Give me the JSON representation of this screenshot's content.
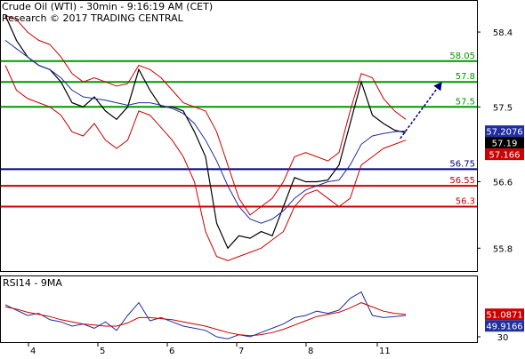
{
  "header": {
    "title_line": "Crude Oil (WTI) - 30min - 9:16:19 AM (CET)",
    "source_line": "Research © 2017 TRADING CENTRAL"
  },
  "rsi": {
    "label": "RSI14 - 9MA"
  },
  "chart_data": [
    {
      "type": "line",
      "title": "Crude Oil (WTI) - 30min - 9:16:19 AM (CET)",
      "subtitle": "Research © 2017 TRADING CENTRAL",
      "ylim": [
        55.6,
        58.7
      ],
      "y_ticks": [
        55.8,
        56.6,
        57.5,
        58.4
      ],
      "x_ticks": [
        "4",
        "5",
        "6",
        "7",
        "8",
        "11"
      ],
      "grid": false,
      "colors": {
        "price": "#000000",
        "bollinger": "#cc0000",
        "ma": "#1f2fa0",
        "resistance": "#009900",
        "support_blue": "#000080",
        "support_red": "#cc0000",
        "arrow": "#000080"
      },
      "horizontal_levels": [
        {
          "label": "58.05",
          "value": 58.05,
          "color": "#009900"
        },
        {
          "label": "57.8",
          "value": 57.8,
          "color": "#009900"
        },
        {
          "label": "57.5",
          "value": 57.5,
          "color": "#009900"
        },
        {
          "label": "56.75",
          "value": 56.75,
          "color": "#000080"
        },
        {
          "label": "56.55",
          "value": 56.55,
          "color": "#cc0000"
        },
        {
          "label": "56.3",
          "value": 56.3,
          "color": "#cc0000"
        }
      ],
      "price_tags": [
        {
          "label": "57.2076",
          "value": 57.2076,
          "bg": "#1f2fa0",
          "fg": "#ffffff"
        },
        {
          "label": "57.19",
          "value": 57.19,
          "bg": "#000000",
          "fg": "#ffffff"
        },
        {
          "label": "57.166",
          "value": 57.166,
          "bg": "#cc0000",
          "fg": "#ffffff"
        }
      ],
      "arrow": {
        "from": {
          "x": 142,
          "y": 57.12
        },
        "to": {
          "x": 157,
          "y": 57.8
        }
      },
      "x": [
        0,
        4,
        8,
        12,
        16,
        20,
        24,
        28,
        32,
        36,
        40,
        44,
        48,
        52,
        56,
        60,
        64,
        68,
        72,
        76,
        80,
        84,
        88,
        92,
        96,
        100,
        104,
        108,
        112,
        116,
        120,
        124,
        128,
        132,
        136,
        140,
        144
      ],
      "series": [
        {
          "values": [
            58.6,
            58.3,
            58.1,
            58.0,
            57.95,
            57.8,
            57.55,
            57.5,
            57.62,
            57.45,
            57.35,
            57.5,
            57.95,
            57.7,
            57.5,
            57.5,
            57.45,
            57.2,
            56.9,
            56.1,
            55.8,
            55.95,
            55.92,
            56.0,
            55.95,
            56.3,
            56.65,
            56.6,
            56.6,
            56.62,
            56.8,
            57.3,
            57.8,
            57.4,
            57.3,
            57.22,
            57.19
          ]
        },
        {
          "values": [
            58.6,
            58.55,
            58.4,
            58.3,
            58.25,
            58.1,
            57.9,
            57.8,
            57.85,
            57.8,
            57.75,
            57.78,
            58.0,
            57.95,
            57.85,
            57.7,
            57.55,
            57.5,
            57.45,
            57.2,
            56.8,
            56.4,
            56.2,
            56.3,
            56.4,
            56.6,
            56.9,
            56.95,
            56.9,
            56.85,
            56.95,
            57.45,
            57.9,
            57.85,
            57.6,
            57.45,
            57.35
          ]
        },
        {
          "values": [
            58.0,
            57.7,
            57.6,
            57.55,
            57.5,
            57.4,
            57.2,
            57.15,
            57.3,
            57.1,
            57.0,
            57.1,
            57.45,
            57.4,
            57.25,
            57.1,
            56.9,
            56.6,
            56.0,
            55.7,
            55.65,
            55.7,
            55.75,
            55.8,
            55.9,
            56.0,
            56.3,
            56.45,
            56.5,
            56.4,
            56.3,
            56.4,
            56.8,
            56.9,
            57.0,
            57.05,
            57.1
          ]
        },
        {
          "values": [
            58.3,
            58.2,
            58.1,
            58.0,
            57.95,
            57.85,
            57.7,
            57.62,
            57.6,
            57.58,
            57.55,
            57.52,
            57.55,
            57.55,
            57.52,
            57.48,
            57.42,
            57.3,
            57.1,
            56.85,
            56.55,
            56.3,
            56.15,
            56.1,
            56.15,
            56.25,
            56.4,
            56.5,
            56.55,
            56.6,
            56.62,
            56.8,
            57.05,
            57.15,
            57.18,
            57.2,
            57.21
          ]
        }
      ]
    },
    {
      "type": "line",
      "title": "RSI14 - 9MA",
      "ylim": [
        25,
        85
      ],
      "y_ticks": [
        30
      ],
      "x_ticks": [
        "4",
        "5",
        "6",
        "7",
        "8",
        "11"
      ],
      "price_tags": [
        {
          "label": "51.0871",
          "value": 51.0871,
          "bg": "#cc0000",
          "fg": "#ffffff"
        },
        {
          "label": "49.9166",
          "value": 49.9166,
          "bg": "#1f2fa0",
          "fg": "#ffffff"
        }
      ],
      "x": [
        0,
        4,
        8,
        12,
        16,
        20,
        24,
        28,
        32,
        36,
        40,
        44,
        48,
        52,
        56,
        60,
        64,
        68,
        72,
        76,
        80,
        84,
        88,
        92,
        96,
        100,
        104,
        108,
        112,
        116,
        120,
        124,
        128,
        132,
        136,
        140,
        144
      ],
      "series": [
        {
          "values": [
            60,
            55,
            50,
            52,
            46,
            44,
            40,
            42,
            38,
            44,
            36,
            50,
            62,
            45,
            48,
            44,
            40,
            38,
            36,
            30,
            28,
            32,
            30,
            34,
            38,
            42,
            48,
            50,
            54,
            52,
            55,
            66,
            72,
            50,
            48,
            49,
            50
          ]
        },
        {
          "values": [
            58,
            56,
            53,
            51,
            49,
            46,
            44,
            42,
            41,
            40,
            40,
            43,
            48,
            48,
            47,
            46,
            44,
            42,
            40,
            37,
            34,
            32,
            31,
            32,
            34,
            37,
            41,
            45,
            49,
            51,
            53,
            57,
            62,
            58,
            54,
            52,
            51
          ]
        }
      ]
    }
  ]
}
